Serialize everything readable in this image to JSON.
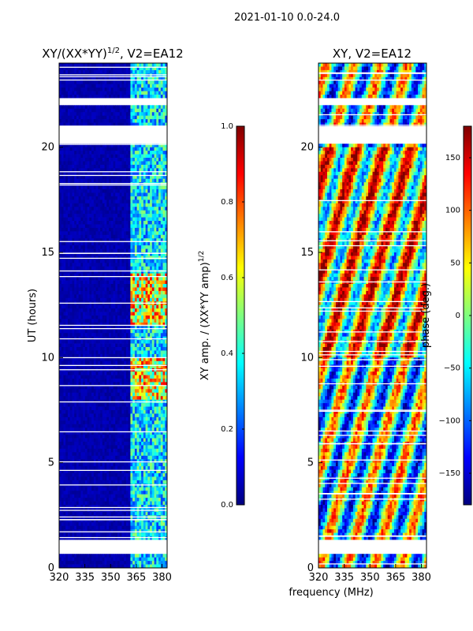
{
  "figure": {
    "suptitle": "2021-01-10 0.0-24.0",
    "xlabel_shared": "frequency (MHz)"
  },
  "colors": {
    "jet": [
      "#00007f",
      "#0000ff",
      "#007fff",
      "#00ffff",
      "#7fff7f",
      "#ffff00",
      "#ff7f00",
      "#ff0000",
      "#7f0000"
    ],
    "gap": "#ffffff",
    "frame": "#000000"
  },
  "chart_data": [
    {
      "type": "heatmap",
      "title_main": "XY/(XX*YY)",
      "title_sup": "1/2",
      "title_tail": ", V2=EA12",
      "xlabel": "",
      "ylabel": "UT (hours)",
      "xlim": [
        320,
        383
      ],
      "ylim": [
        0,
        24
      ],
      "xticks": [
        320,
        335,
        350,
        365,
        380
      ],
      "xtick_labels": [
        "320",
        "335",
        "350",
        "365",
        "380"
      ],
      "yticks": [
        0,
        5,
        10,
        15,
        20
      ],
      "ytick_labels": [
        "0",
        "5",
        "10",
        "15",
        "20"
      ],
      "colorbar": {
        "label_main": "XY amp. / (XX*YY amp)",
        "label_sup": "1/2",
        "range": [
          0.0,
          1.0
        ],
        "ticks": [
          0.0,
          0.2,
          0.4,
          0.6,
          0.8,
          1.0
        ],
        "tick_labels": [
          "0.0",
          "0.2",
          "0.4",
          "0.6",
          "0.8",
          "1.0"
        ]
      },
      "gaps_hours": [
        [
          0.7,
          1.4
        ],
        [
          20.2,
          21.0
        ],
        [
          22.0,
          22.4
        ]
      ],
      "active_band_mhz": [
        361,
        383
      ],
      "bright_band_hours": [
        [
          8.0,
          10.0
        ],
        [
          11.5,
          14.0
        ]
      ]
    },
    {
      "type": "heatmap",
      "title": "XY, V2=EA12",
      "xlabel": "",
      "ylabel": "",
      "xlim": [
        320,
        383
      ],
      "ylim": [
        0,
        24
      ],
      "xticks": [
        320,
        335,
        350,
        365,
        380
      ],
      "xtick_labels": [
        "320",
        "335",
        "350",
        "365",
        "380"
      ],
      "yticks": [
        0,
        5,
        10,
        15,
        20
      ],
      "ytick_labels": [
        "0",
        "5",
        "10",
        "15",
        "20"
      ],
      "colorbar": {
        "label": "phase (deg.)",
        "range": [
          -180,
          180
        ],
        "ticks": [
          -150,
          -100,
          -50,
          0,
          50,
          100,
          150
        ],
        "tick_labels": [
          "−150",
          "−100",
          "−50",
          "0",
          "50",
          "100",
          "150"
        ]
      },
      "gaps_hours": [
        [
          0.7,
          1.4
        ],
        [
          20.2,
          21.0
        ],
        [
          22.0,
          22.4
        ]
      ]
    }
  ]
}
